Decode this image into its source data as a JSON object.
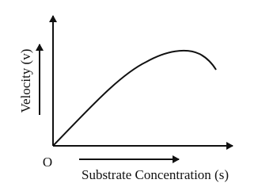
{
  "axis_labels": {
    "y": "Velocity (v)",
    "origin": "O",
    "x": "Substrate Concentration (s)"
  }
}
